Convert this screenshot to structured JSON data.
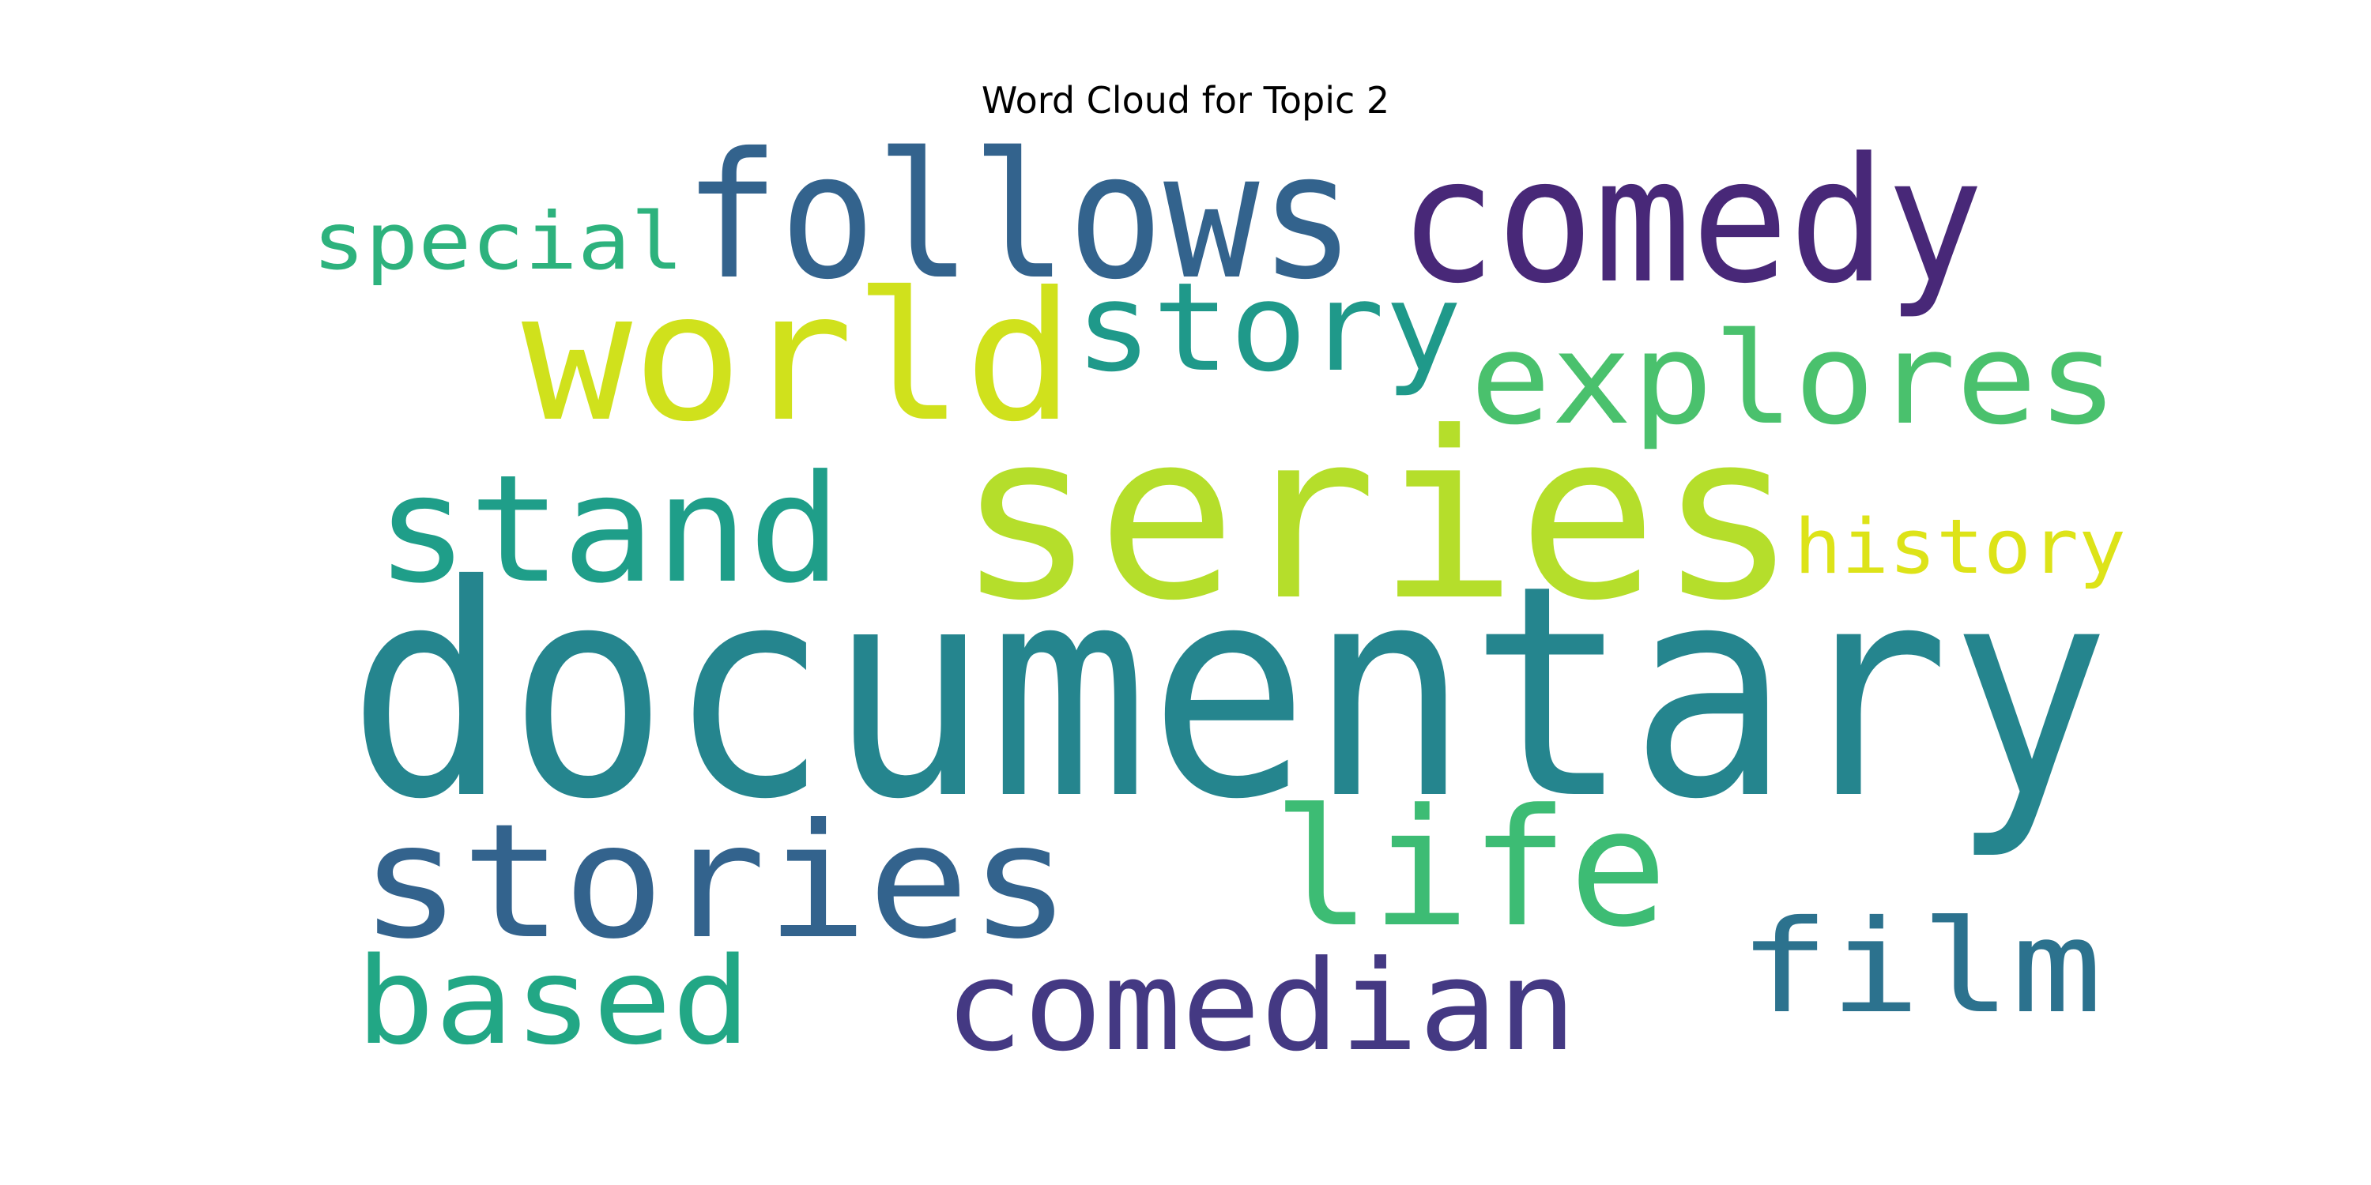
{
  "chart_data": {
    "type": "wordcloud",
    "title": "Word Cloud for Topic 2",
    "colormap": "viridis",
    "background": "#ffffff",
    "words": [
      {
        "text": "documentary",
        "color": "#25858e"
      },
      {
        "text": "series",
        "color": "#b5de2b"
      },
      {
        "text": "follows",
        "color": "#33638d"
      },
      {
        "text": "comedy",
        "color": "#482878"
      },
      {
        "text": "world",
        "color": "#d0e11c"
      },
      {
        "text": "stories",
        "color": "#33638d"
      },
      {
        "text": "life",
        "color": "#3dbc74"
      },
      {
        "text": "stand",
        "color": "#1f9e89"
      },
      {
        "text": "explores",
        "color": "#4ac16d"
      },
      {
        "text": "story",
        "color": "#1f998a"
      },
      {
        "text": "comedian",
        "color": "#443983"
      },
      {
        "text": "film",
        "color": "#2c728e"
      },
      {
        "text": "based",
        "color": "#22a785"
      },
      {
        "text": "special",
        "color": "#2db27d"
      },
      {
        "text": "history",
        "color": "#dde318"
      }
    ]
  }
}
